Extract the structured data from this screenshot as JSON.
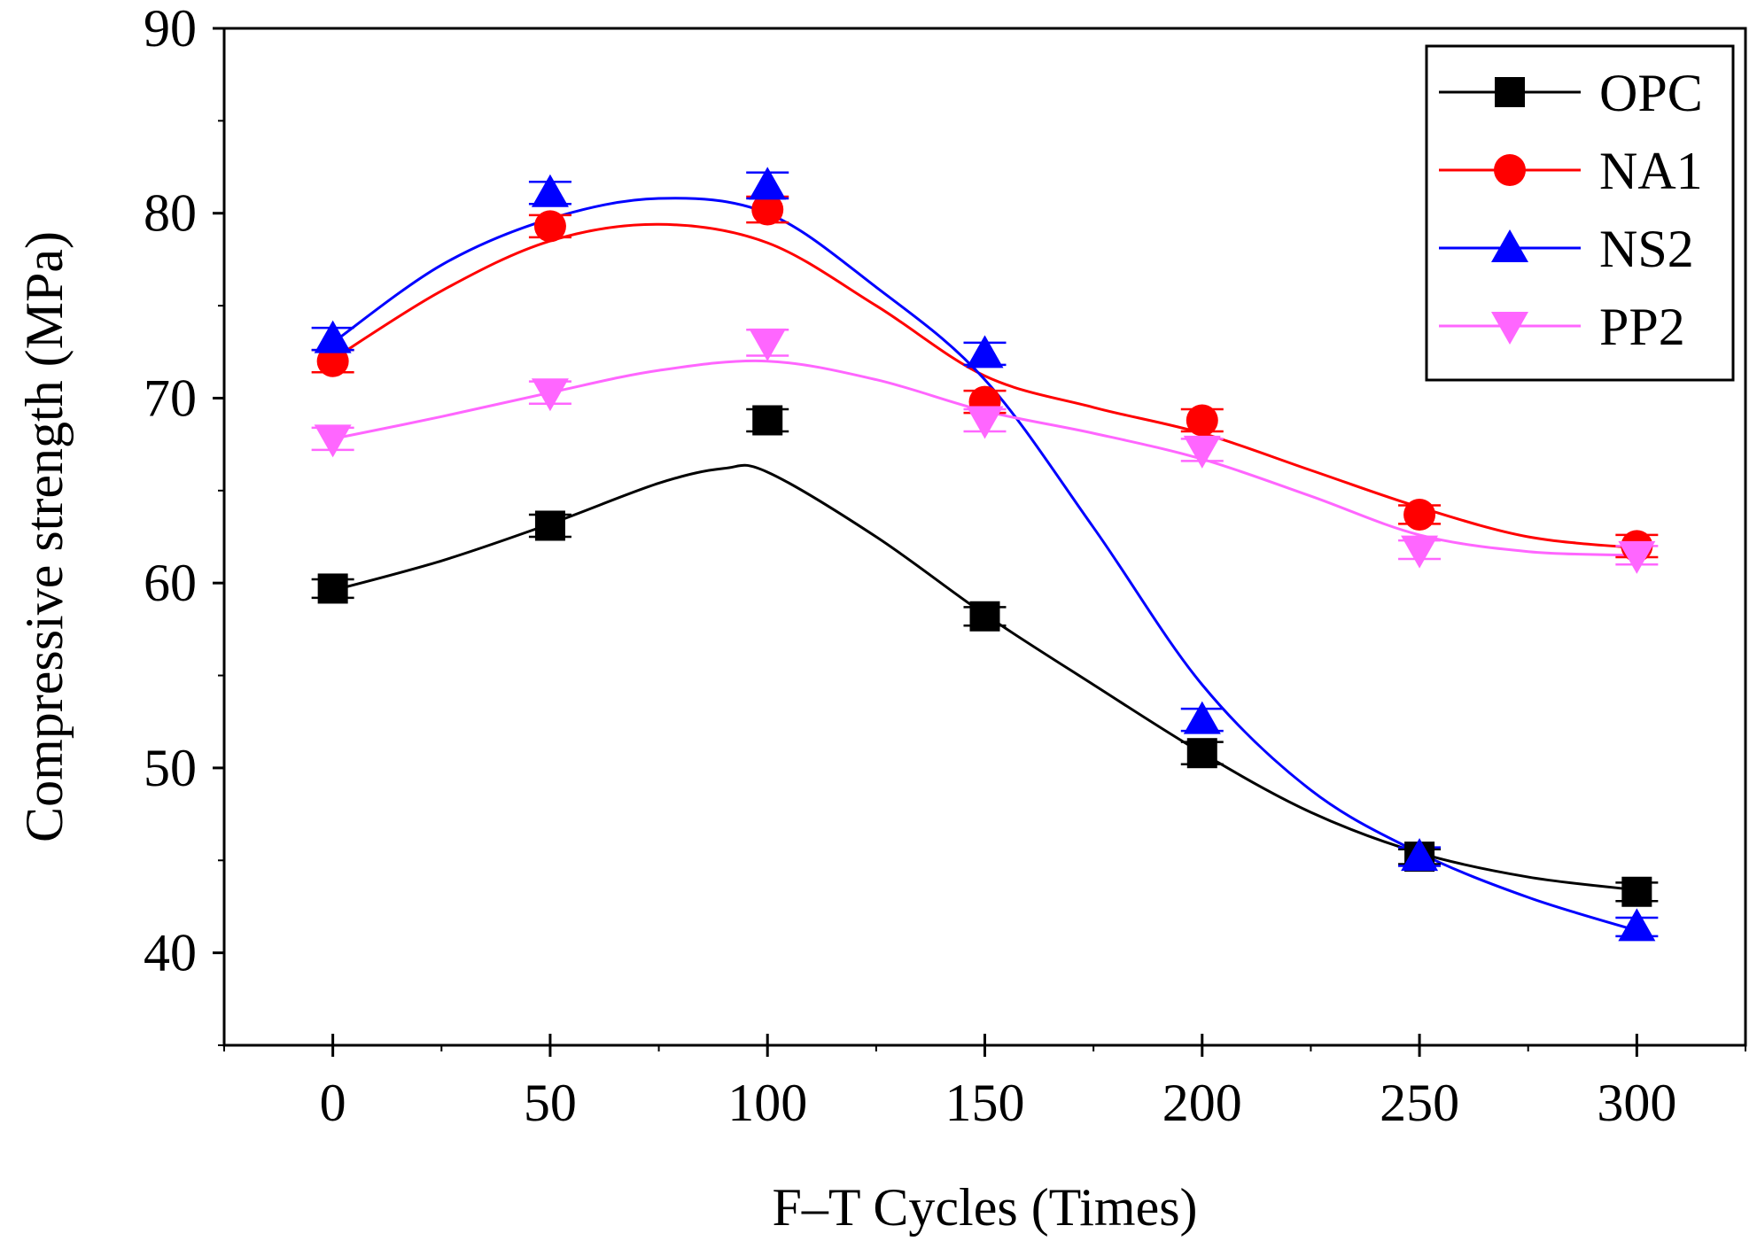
{
  "chart_data": {
    "type": "line",
    "title": "",
    "xlabel": "F–T Cycles (Times)",
    "ylabel": "Compressive strength (MPa)",
    "x": [
      0,
      50,
      100,
      150,
      200,
      250,
      300
    ],
    "xlim": [
      -25,
      325
    ],
    "ylim": [
      35,
      90
    ],
    "xticks": [
      0,
      50,
      100,
      150,
      200,
      250,
      300
    ],
    "yticks": [
      40,
      50,
      60,
      70,
      80,
      90
    ],
    "xtick_labels": [
      "0",
      "50",
      "100",
      "150",
      "200",
      "250",
      "300"
    ],
    "ytick_labels": [
      "40",
      "50",
      "60",
      "70",
      "80",
      "90"
    ],
    "legend_position": "top-right",
    "grid": false,
    "series": [
      {
        "name": "OPC",
        "marker": "square",
        "color": "#000000",
        "values": [
          59.7,
          63.1,
          68.8,
          58.2,
          50.8,
          45.2,
          43.3
        ],
        "errors": [
          0.5,
          0.6,
          0.6,
          0.5,
          0.6,
          0.4,
          0.5
        ],
        "fit": [
          [
            0,
            59.6
          ],
          [
            25,
            61.2
          ],
          [
            50,
            63.2
          ],
          [
            75,
            65.4
          ],
          [
            90,
            66.2
          ],
          [
            100,
            66.0
          ],
          [
            125,
            62.5
          ],
          [
            150,
            58.3
          ],
          [
            175,
            54.5
          ],
          [
            200,
            50.8
          ],
          [
            225,
            47.6
          ],
          [
            250,
            45.4
          ],
          [
            275,
            44.1
          ],
          [
            300,
            43.4
          ]
        ]
      },
      {
        "name": "NA1",
        "marker": "circle",
        "color": "#ff0000",
        "values": [
          72.0,
          79.3,
          80.2,
          69.8,
          68.8,
          63.7,
          62.0
        ],
        "errors": [
          0.6,
          0.6,
          0.7,
          0.6,
          0.6,
          0.5,
          0.6
        ],
        "fit": [
          [
            0,
            72.1
          ],
          [
            25,
            75.8
          ],
          [
            50,
            78.5
          ],
          [
            75,
            79.4
          ],
          [
            100,
            78.4
          ],
          [
            125,
            75.0
          ],
          [
            150,
            71.2
          ],
          [
            175,
            69.5
          ],
          [
            200,
            68.1
          ],
          [
            225,
            66.1
          ],
          [
            250,
            64.1
          ],
          [
            275,
            62.5
          ],
          [
            300,
            61.9
          ]
        ]
      },
      {
        "name": "NS2",
        "marker": "triangle-up",
        "color": "#0000ff",
        "values": [
          73.2,
          81.1,
          81.5,
          72.4,
          52.6,
          45.2,
          41.4
        ],
        "errors": [
          0.6,
          0.6,
          0.7,
          0.6,
          0.6,
          0.5,
          0.5
        ],
        "fit": [
          [
            0,
            73.0
          ],
          [
            25,
            77.2
          ],
          [
            50,
            79.7
          ],
          [
            75,
            80.8
          ],
          [
            100,
            80.0
          ],
          [
            125,
            76.0
          ],
          [
            150,
            71.0
          ],
          [
            175,
            63.0
          ],
          [
            200,
            54.5
          ],
          [
            225,
            48.8
          ],
          [
            250,
            45.4
          ],
          [
            275,
            43.0
          ],
          [
            300,
            41.2
          ]
        ]
      },
      {
        "name": "PP2",
        "marker": "triangle-down",
        "color": "#ff66ff",
        "values": [
          67.8,
          70.3,
          73.0,
          68.8,
          67.2,
          61.8,
          61.5
        ],
        "errors": [
          0.6,
          0.6,
          0.7,
          0.6,
          0.6,
          0.5,
          0.5
        ],
        "fit": [
          [
            0,
            67.8
          ],
          [
            25,
            69.0
          ],
          [
            50,
            70.3
          ],
          [
            75,
            71.5
          ],
          [
            100,
            72.0
          ],
          [
            125,
            71.0
          ],
          [
            150,
            69.3
          ],
          [
            175,
            68.1
          ],
          [
            200,
            66.7
          ],
          [
            225,
            64.7
          ],
          [
            250,
            62.6
          ],
          [
            275,
            61.7
          ],
          [
            300,
            61.5
          ]
        ]
      }
    ]
  }
}
